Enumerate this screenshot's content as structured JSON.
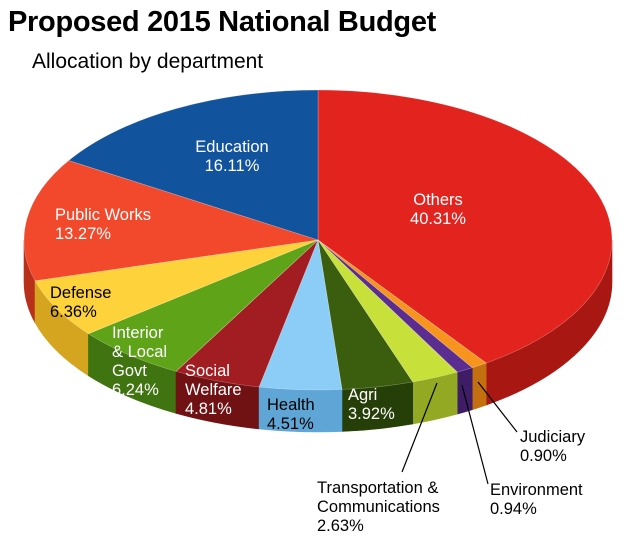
{
  "chart_data": {
    "type": "pie",
    "style": "3d",
    "title": "Proposed 2015 National Budget",
    "subtitle": "Allocation by department",
    "slices": [
      {
        "name": "Others",
        "label_lines": [
          "Others"
        ],
        "value_text": "40.31%",
        "value": 40.31,
        "color": "#e2231e",
        "side_color": "#a81712",
        "label_color": "#ffffff",
        "label_pos": "inside"
      },
      {
        "name": "Judiciary",
        "label_lines": [
          "Judiciary"
        ],
        "value_text": "0.90%",
        "value": 0.9,
        "color": "#f7941d",
        "side_color": "#c46f10",
        "label_color": "#000000",
        "label_pos": "callout"
      },
      {
        "name": "Environment",
        "label_lines": [
          "Environment"
        ],
        "value_text": "0.94%",
        "value": 0.94,
        "color": "#5c2d91",
        "side_color": "#3e1d66",
        "label_color": "#000000",
        "label_pos": "callout"
      },
      {
        "name": "Transportation & Communications",
        "label_lines": [
          "Transportation &",
          "Communications"
        ],
        "value_text": "2.63%",
        "value": 2.63,
        "color": "#c8e03a",
        "side_color": "#93a924",
        "label_color": "#000000",
        "label_pos": "callout"
      },
      {
        "name": "Agri",
        "label_lines": [
          "Agri"
        ],
        "value_text": "3.92%",
        "value": 3.92,
        "color": "#3b5e0e",
        "side_color": "#263f08",
        "label_color": "#ffffff",
        "label_pos": "inside"
      },
      {
        "name": "Health",
        "label_lines": [
          "Health"
        ],
        "value_text": "4.51%",
        "value": 4.51,
        "color": "#8ccdf7",
        "side_color": "#5fa6d6",
        "label_color": "#000000",
        "label_pos": "inside"
      },
      {
        "name": "Social Welfare",
        "label_lines": [
          "Social",
          "Welfare"
        ],
        "value_text": "4.81%",
        "value": 4.81,
        "color": "#a21d21",
        "side_color": "#701214",
        "label_color": "#ffffff",
        "label_pos": "inside"
      },
      {
        "name": "Interior & Local Govt",
        "label_lines": [
          "Interior",
          "& Local",
          "Govt"
        ],
        "value_text": "6.24%",
        "value": 6.24,
        "color": "#5fa319",
        "side_color": "#3f7410",
        "label_color": "#ffffff",
        "label_pos": "inside"
      },
      {
        "name": "Defense",
        "label_lines": [
          "Defense"
        ],
        "value_text": "6.36%",
        "value": 6.36,
        "color": "#fdd23a",
        "side_color": "#d6a51f",
        "label_color": "#000000",
        "label_pos": "inside"
      },
      {
        "name": "Public Works",
        "label_lines": [
          "Public Works"
        ],
        "value_text": "13.27%",
        "value": 13.27,
        "color": "#f2482b",
        "side_color": "#b8301a",
        "label_color": "#ffffff",
        "label_pos": "inside"
      },
      {
        "name": "Education",
        "label_lines": [
          "Education"
        ],
        "value_text": "16.11%",
        "value": 16.11,
        "color": "#12539d",
        "side_color": "#0b3a70",
        "label_color": "#ffffff",
        "label_pos": "inside"
      }
    ]
  }
}
